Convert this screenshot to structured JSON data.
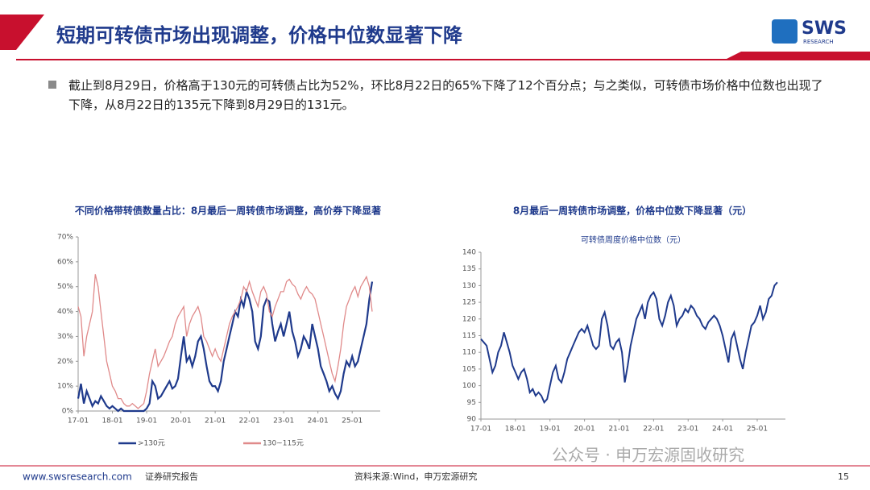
{
  "header": {
    "title": "短期可转债市场出现调整，价格中位数显著下降",
    "logo": "SWS",
    "logo_sub": "RESEARCH"
  },
  "bullet": "截止到8月29日，价格高于130元的可转债占比为52%，环比8月22日的65%下降了12个百分点；与之类似，可转债市场价格中位数也出现了下降，从8月22日的135元下降到8月29日的131元。",
  "footer": {
    "site": "www.swsresearch.com",
    "label": "证券研究报告",
    "source": "资料来源:Wind，申万宏源研究",
    "page": "15",
    "watermark": "公众号 · 申万宏源固收研究"
  },
  "chart_data": [
    {
      "type": "line",
      "title": "不同价格带转债数量占比：8月最后一周转债市场调整，高价券下降显著",
      "x": [
        "17-01",
        "17-02",
        "17-03",
        "17-04",
        "17-05",
        "17-06",
        "17-07",
        "17-08",
        "17-09",
        "17-10",
        "17-11",
        "17-12",
        "18-01",
        "18-02",
        "18-03",
        "18-04",
        "18-05",
        "18-06",
        "18-07",
        "18-08",
        "18-09",
        "18-10",
        "18-11",
        "18-12",
        "19-01",
        "19-02",
        "19-03",
        "19-04",
        "19-05",
        "19-06",
        "19-07",
        "19-08",
        "19-09",
        "19-10",
        "19-11",
        "19-12",
        "20-01",
        "20-02",
        "20-03",
        "20-04",
        "20-05",
        "20-06",
        "20-07",
        "20-08",
        "20-09",
        "20-10",
        "20-11",
        "20-12",
        "21-01",
        "21-02",
        "21-03",
        "21-04",
        "21-05",
        "21-06",
        "21-07",
        "21-08",
        "21-09",
        "21-10",
        "21-11",
        "21-12",
        "22-01",
        "22-02",
        "22-03",
        "22-04",
        "22-05",
        "22-06",
        "22-07",
        "22-08",
        "22-09",
        "22-10",
        "22-11",
        "22-12",
        "23-01",
        "23-02",
        "23-03",
        "23-04",
        "23-05",
        "23-06",
        "23-07",
        "23-08",
        "23-09",
        "23-10",
        "23-11",
        "23-12",
        "24-01",
        "24-02",
        "24-03",
        "24-04",
        "24-05",
        "24-06",
        "24-07",
        "24-08",
        "24-09",
        "24-10",
        "24-11",
        "24-12",
        "25-01",
        "25-02",
        "25-03",
        "25-04",
        "25-05",
        "25-06",
        "25-07",
        "25-08"
      ],
      "xticks": [
        "17-01",
        "18-01",
        "19-01",
        "20-01",
        "21-01",
        "22-01",
        "23-01",
        "24-01",
        "25-01"
      ],
      "ylim": [
        0,
        70
      ],
      "yticks": [
        {
          "value": 0,
          "label": "0%"
        },
        {
          "value": 10,
          "label": "10%"
        },
        {
          "value": 20,
          "label": "20%"
        },
        {
          "value": 30,
          "label": "30%"
        },
        {
          "value": 40,
          "label": "40%"
        },
        {
          "value": 50,
          "label": "50%"
        },
        {
          "value": 60,
          "label": "60%"
        },
        {
          "value": 70,
          "label": "70%"
        }
      ],
      "legend": "bottom",
      "series": [
        {
          "name": ">130元",
          "color": "#1f3a8c",
          "width": 2.2,
          "values": [
            5,
            11,
            3,
            8,
            5,
            2,
            4,
            3,
            6,
            4,
            2,
            1,
            2,
            1,
            0,
            1,
            0,
            0,
            0,
            0,
            0,
            0,
            0,
            0,
            1,
            3,
            12,
            10,
            5,
            6,
            8,
            10,
            12,
            9,
            10,
            13,
            22,
            30,
            20,
            22,
            18,
            22,
            28,
            30,
            25,
            18,
            12,
            10,
            10,
            8,
            12,
            20,
            25,
            30,
            35,
            40,
            38,
            45,
            42,
            48,
            45,
            40,
            28,
            25,
            30,
            42,
            45,
            44,
            35,
            28,
            32,
            35,
            30,
            35,
            40,
            32,
            28,
            22,
            25,
            30,
            28,
            25,
            35,
            30,
            25,
            18,
            15,
            12,
            8,
            10,
            7,
            5,
            8,
            15,
            20,
            18,
            22,
            18,
            20,
            25,
            30,
            35,
            45,
            52
          ]
        },
        {
          "name": "130~115元",
          "color": "#e08a8a",
          "width": 1.3,
          "values": [
            42,
            38,
            22,
            30,
            35,
            40,
            55,
            50,
            40,
            30,
            20,
            15,
            10,
            8,
            5,
            5,
            3,
            2,
            2,
            3,
            2,
            1,
            2,
            3,
            8,
            15,
            20,
            25,
            18,
            20,
            22,
            25,
            28,
            30,
            35,
            38,
            40,
            42,
            30,
            35,
            38,
            40,
            42,
            38,
            30,
            28,
            25,
            22,
            25,
            22,
            20,
            25,
            30,
            35,
            38,
            40,
            42,
            45,
            50,
            48,
            52,
            48,
            45,
            42,
            48,
            50,
            47,
            40,
            38,
            42,
            45,
            48,
            48,
            52,
            53,
            51,
            50,
            47,
            45,
            48,
            50,
            48,
            47,
            45,
            40,
            35,
            30,
            25,
            20,
            15,
            12,
            18,
            25,
            35,
            42,
            45,
            48,
            50,
            46,
            50,
            52,
            54,
            50,
            40
          ]
        }
      ]
    },
    {
      "type": "line",
      "title": "8月最后一周转债市场调整，价格中位数下降显著（元）",
      "x": [
        "17-01",
        "17-02",
        "17-03",
        "17-04",
        "17-05",
        "17-06",
        "17-07",
        "17-08",
        "17-09",
        "17-10",
        "17-11",
        "17-12",
        "18-01",
        "18-02",
        "18-03",
        "18-04",
        "18-05",
        "18-06",
        "18-07",
        "18-08",
        "18-09",
        "18-10",
        "18-11",
        "18-12",
        "19-01",
        "19-02",
        "19-03",
        "19-04",
        "19-05",
        "19-06",
        "19-07",
        "19-08",
        "19-09",
        "19-10",
        "19-11",
        "19-12",
        "20-01",
        "20-02",
        "20-03",
        "20-04",
        "20-05",
        "20-06",
        "20-07",
        "20-08",
        "20-09",
        "20-10",
        "20-11",
        "20-12",
        "21-01",
        "21-02",
        "21-03",
        "21-04",
        "21-05",
        "21-06",
        "21-07",
        "21-08",
        "21-09",
        "21-10",
        "21-11",
        "21-12",
        "22-01",
        "22-02",
        "22-03",
        "22-04",
        "22-05",
        "22-06",
        "22-07",
        "22-08",
        "22-09",
        "22-10",
        "22-11",
        "22-12",
        "23-01",
        "23-02",
        "23-03",
        "23-04",
        "23-05",
        "23-06",
        "23-07",
        "23-08",
        "23-09",
        "23-10",
        "23-11",
        "23-12",
        "24-01",
        "24-02",
        "24-03",
        "24-04",
        "24-05",
        "24-06",
        "24-07",
        "24-08",
        "24-09",
        "24-10",
        "24-11",
        "24-12",
        "25-01",
        "25-02",
        "25-03",
        "25-04",
        "25-05",
        "25-06",
        "25-07",
        "25-08"
      ],
      "xticks": [
        "17-01",
        "18-01",
        "19-01",
        "20-01",
        "21-01",
        "22-01",
        "23-01",
        "24-01",
        "25-01"
      ],
      "ylim": [
        90,
        140
      ],
      "yticks": [
        90,
        95,
        100,
        105,
        110,
        115,
        120,
        125,
        130,
        135,
        140
      ],
      "legend": "top",
      "series": [
        {
          "name": "可转债周度价格中位数（元）",
          "color": "#1f3a8c",
          "width": 2,
          "values": [
            114,
            113,
            112,
            108,
            104,
            106,
            110,
            112,
            116,
            113,
            110,
            106,
            104,
            102,
            104,
            105,
            102,
            98,
            99,
            97,
            98,
            97,
            95,
            96,
            100,
            104,
            106,
            102,
            101,
            104,
            108,
            110,
            112,
            114,
            116,
            117,
            116,
            118,
            115,
            112,
            111,
            112,
            120,
            122,
            118,
            112,
            111,
            113,
            114,
            110,
            101,
            106,
            112,
            116,
            120,
            122,
            124,
            120,
            125,
            127,
            128,
            126,
            120,
            118,
            121,
            125,
            127,
            124,
            118,
            120,
            121,
            123,
            122,
            124,
            123,
            121,
            120,
            118,
            117,
            119,
            120,
            121,
            120,
            118,
            115,
            111,
            107,
            114,
            116,
            112,
            108,
            105,
            110,
            114,
            118,
            119,
            121,
            124,
            120,
            122,
            126,
            127,
            130,
            131
          ]
        }
      ]
    }
  ]
}
